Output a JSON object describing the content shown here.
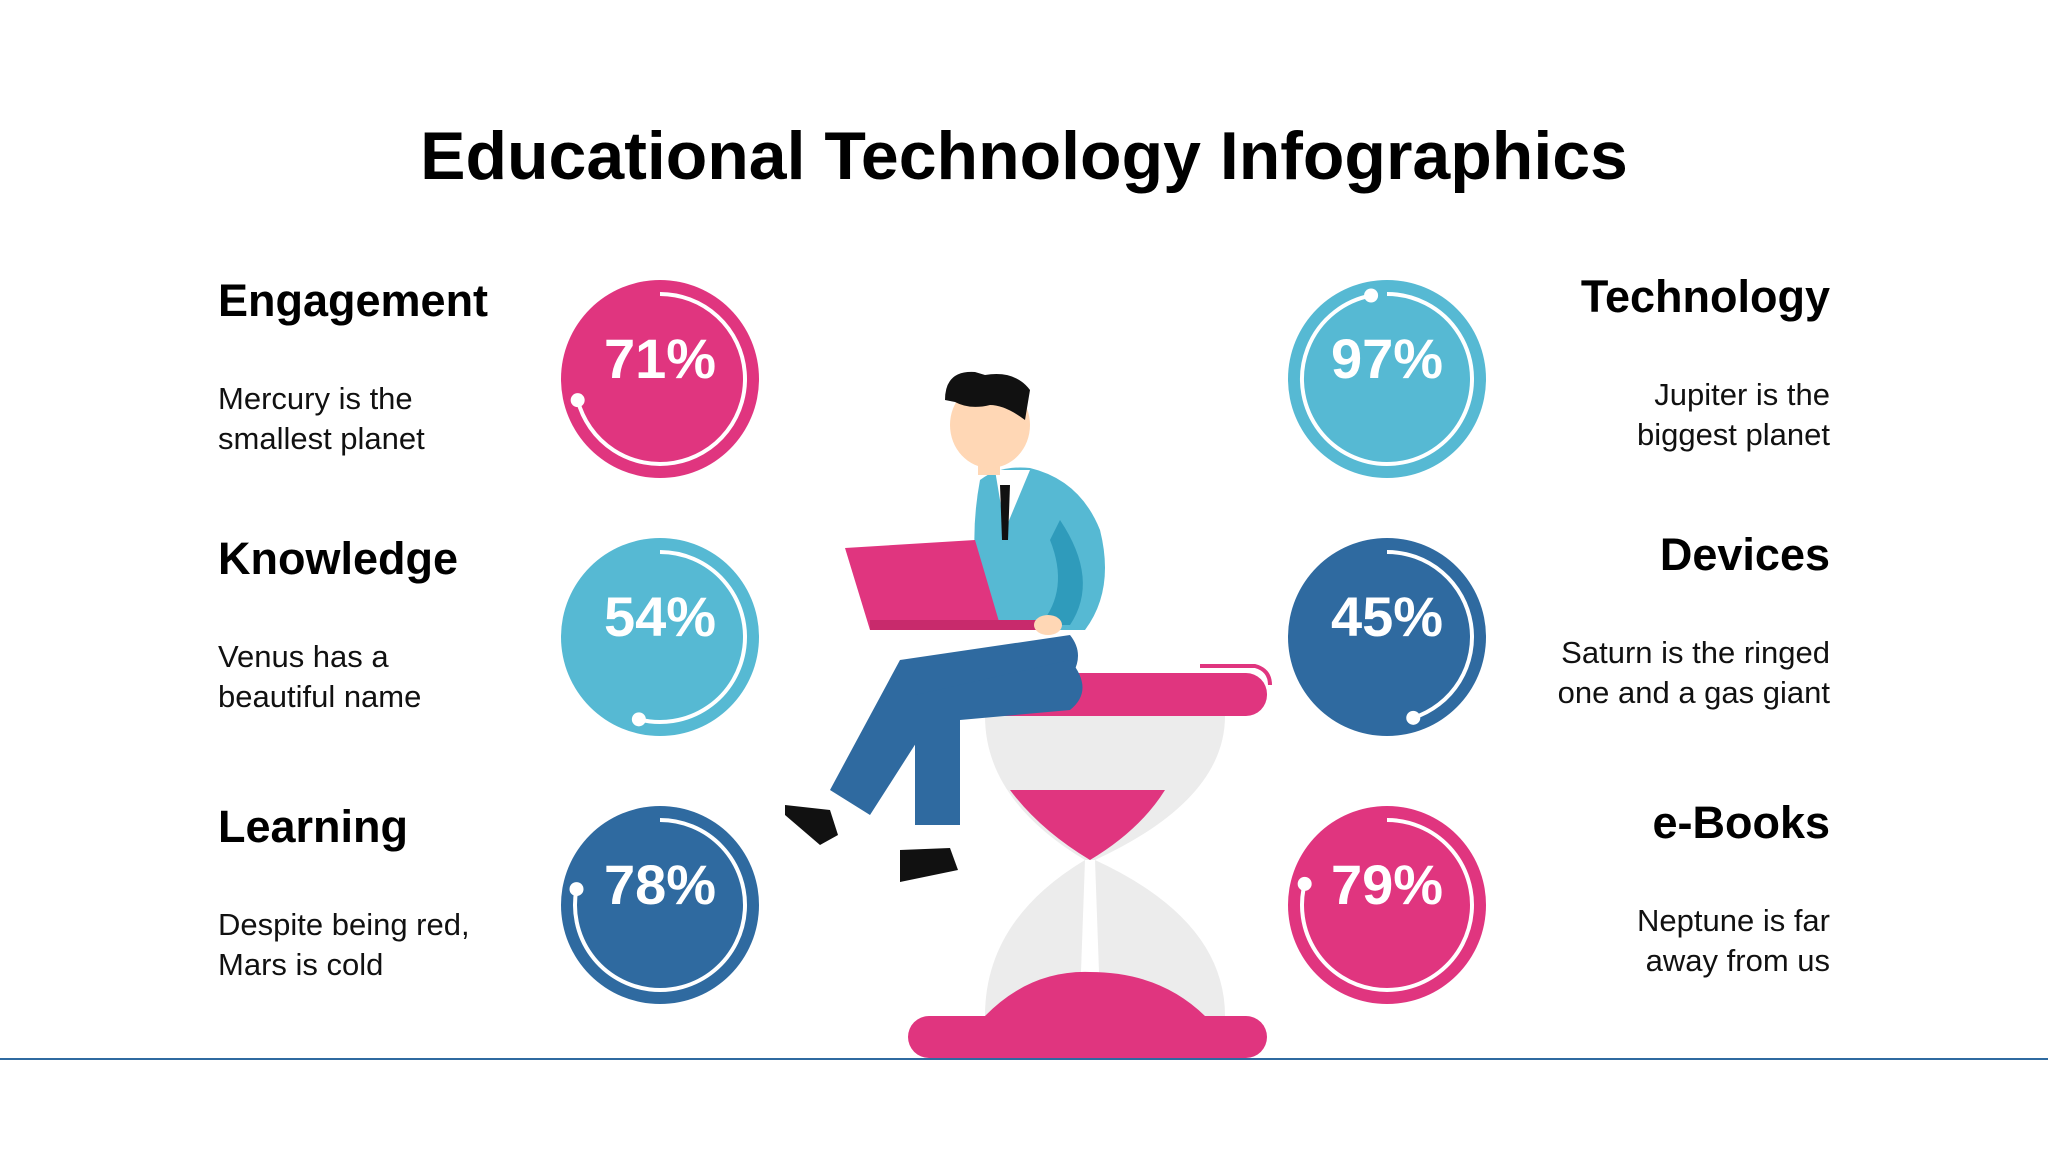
{
  "title": "Educational Technology Infographics",
  "items": [
    {
      "title": "Engagement",
      "text": [
        "Mercury is the",
        "smallest planet"
      ],
      "value": 71,
      "value_label": "71%",
      "color": "#e0357f",
      "side": "left"
    },
    {
      "title": "Knowledge",
      "text": [
        "Venus has a",
        "beautiful name"
      ],
      "value": 54,
      "value_label": "54%",
      "color": "#56b9d3",
      "side": "left"
    },
    {
      "title": "Learning",
      "text": [
        "Despite being red,",
        "Mars is cold"
      ],
      "value": 78,
      "value_label": "78%",
      "color": "#2f6aa0",
      "side": "left"
    },
    {
      "title": "Technology",
      "text": [
        "Jupiter is the",
        "biggest planet"
      ],
      "value": 97,
      "value_label": "97%",
      "color": "#56b9d3",
      "side": "right"
    },
    {
      "title": "Devices",
      "text": [
        "Saturn is the ringed",
        "one and a gas giant"
      ],
      "value": 45,
      "value_label": "45%",
      "color": "#2f6aa0",
      "side": "right"
    },
    {
      "title": "e-Books",
      "text": [
        "Neptune is far",
        "away from us"
      ],
      "value": 79,
      "value_label": "79%",
      "color": "#e0357f",
      "side": "right"
    }
  ]
}
